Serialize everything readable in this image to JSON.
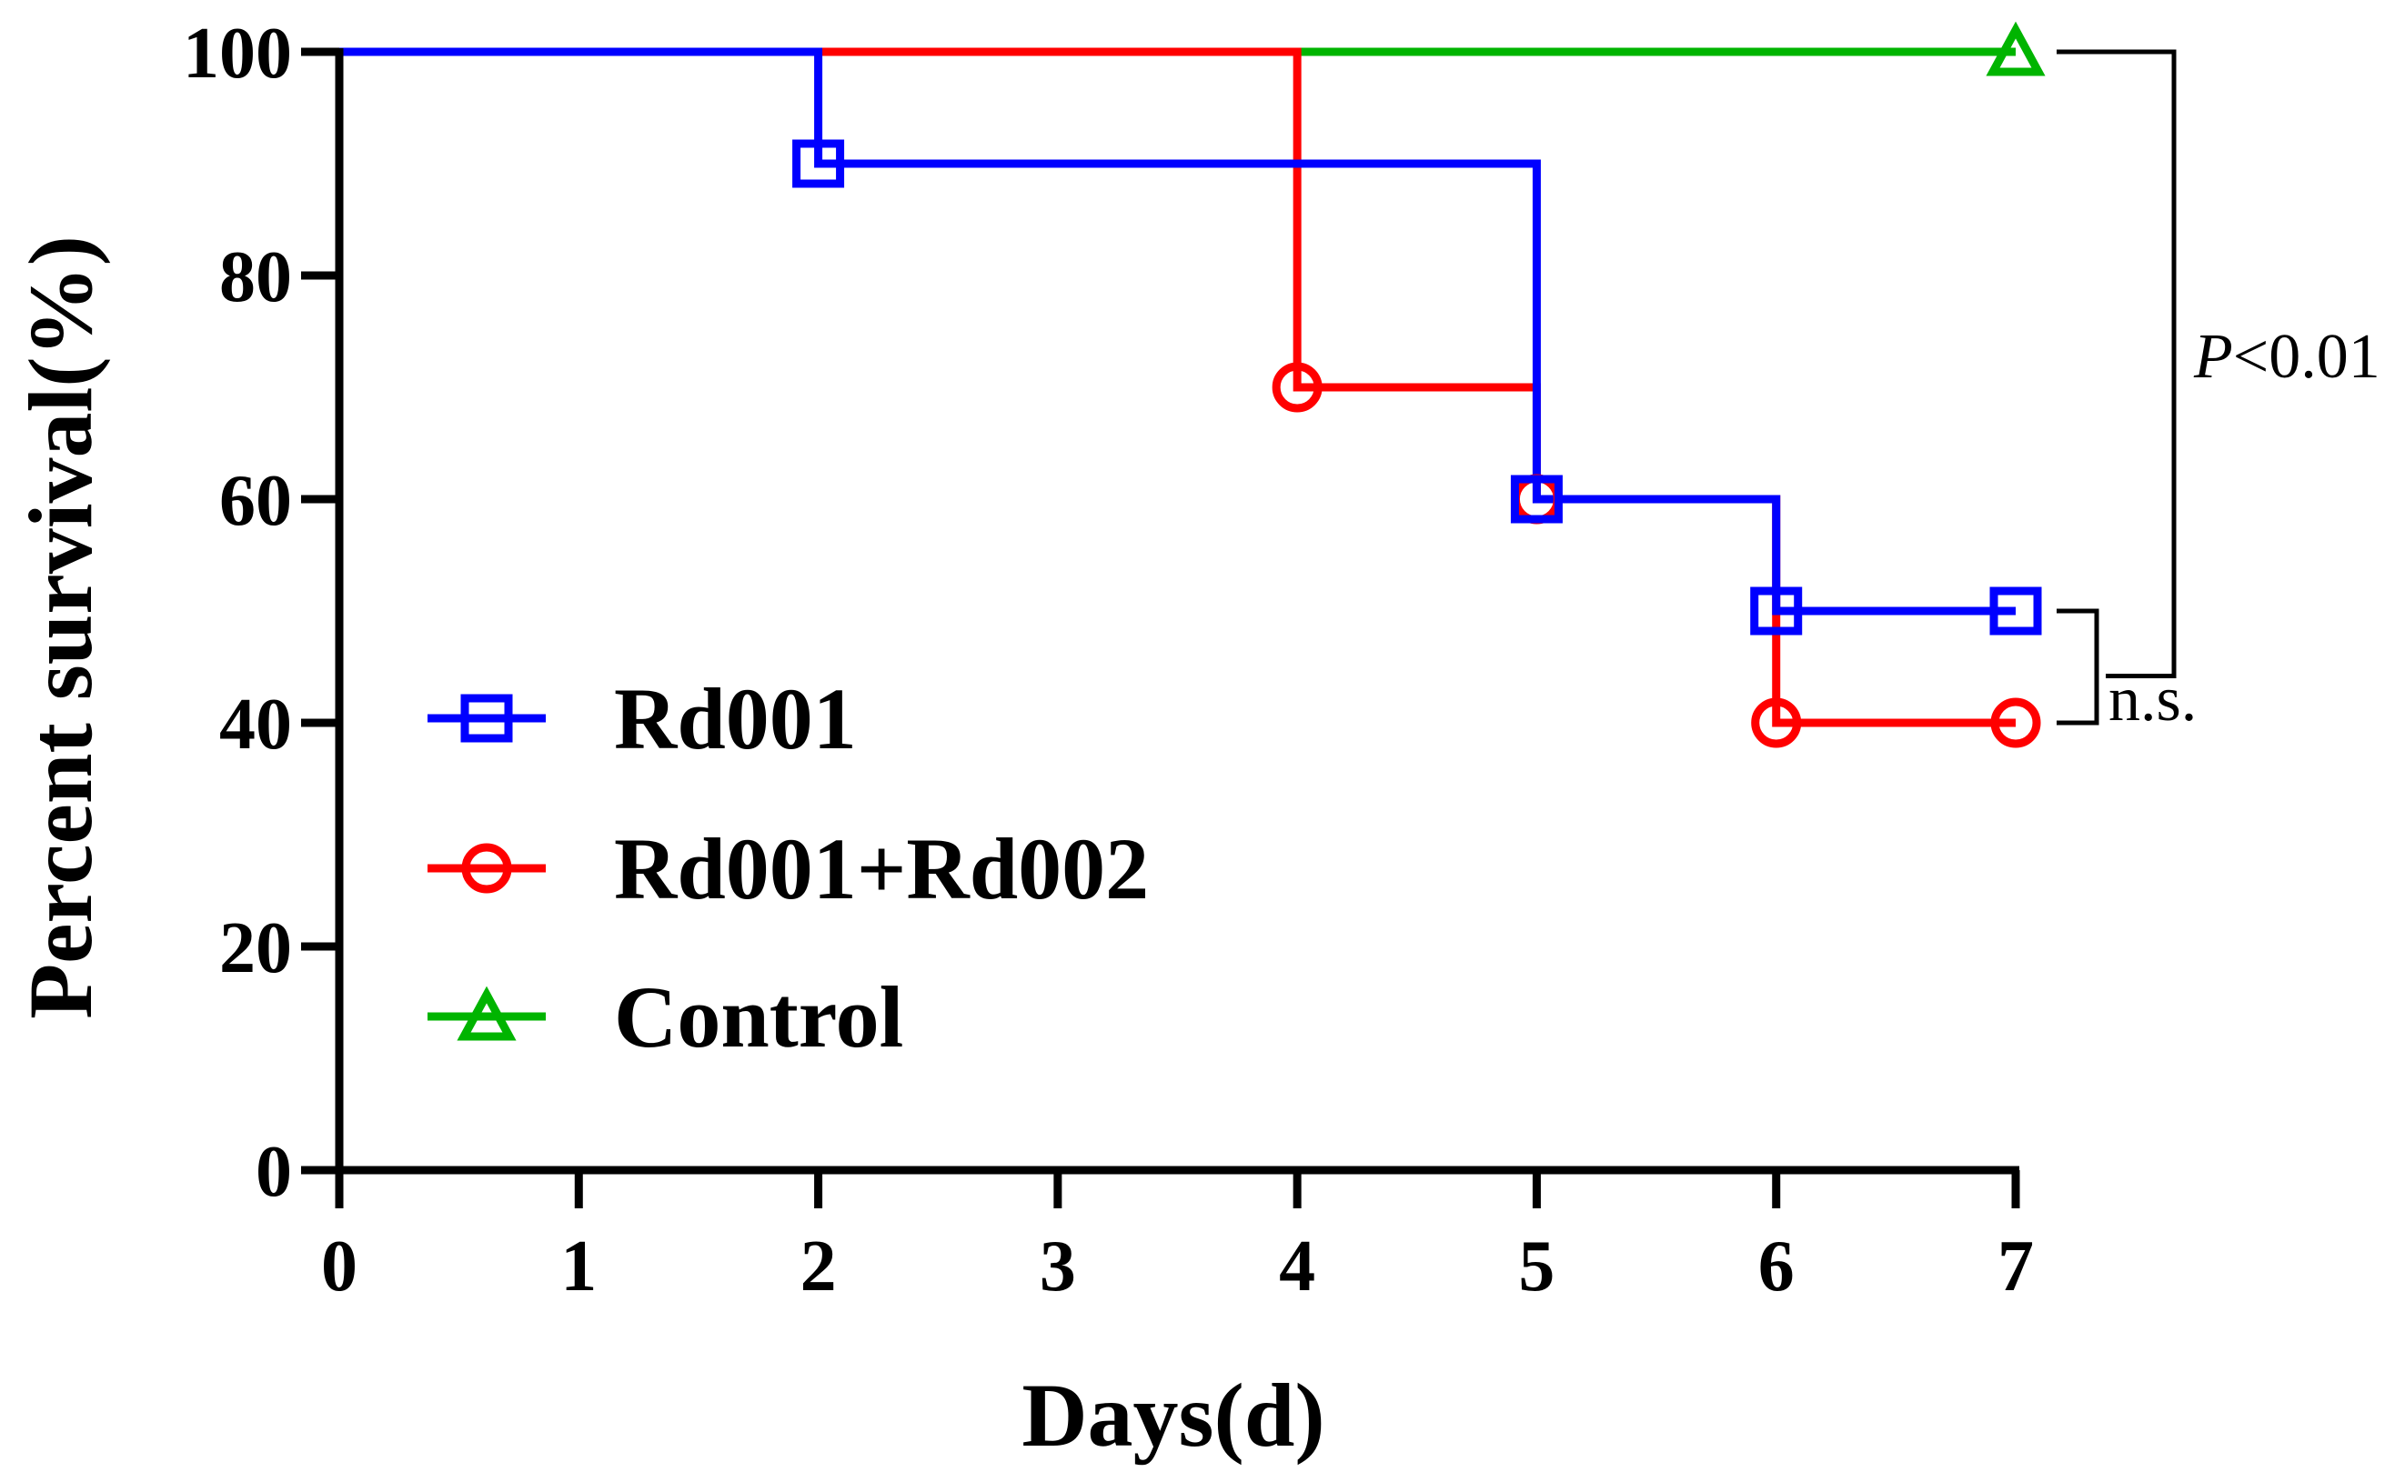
{
  "chart_data": {
    "type": "line",
    "subtype": "kaplan-meier-step",
    "xlabel": "Days(d)",
    "ylabel": "Percent survival(%)",
    "xlim": [
      0,
      7
    ],
    "ylim": [
      0,
      100
    ],
    "x_ticks": [
      0,
      1,
      2,
      3,
      4,
      5,
      6,
      7
    ],
    "y_ticks": [
      0,
      20,
      40,
      60,
      80,
      100
    ],
    "grid": false,
    "legend_position": "bottom-left",
    "series": [
      {
        "name": "Rd001",
        "color": "#0000ff",
        "marker": "square",
        "steps": [
          [
            0,
            100
          ],
          [
            2,
            90
          ],
          [
            5,
            60
          ],
          [
            6,
            50
          ],
          [
            7,
            50
          ]
        ],
        "markers": [
          [
            2,
            90
          ],
          [
            5,
            60
          ],
          [
            6,
            50
          ],
          [
            7,
            50
          ]
        ]
      },
      {
        "name": "Rd001+Rd002",
        "color": "#ff0000",
        "marker": "circle",
        "steps": [
          [
            0,
            100
          ],
          [
            4,
            70
          ],
          [
            5,
            60
          ],
          [
            6,
            40
          ],
          [
            7,
            40
          ]
        ],
        "markers": [
          [
            4,
            70
          ],
          [
            5,
            60
          ],
          [
            6,
            40
          ],
          [
            7,
            40
          ]
        ]
      },
      {
        "name": "Control",
        "color": "#00b400",
        "marker": "triangle",
        "steps": [
          [
            0,
            100
          ],
          [
            7,
            100
          ]
        ],
        "markers": [
          [
            7,
            100
          ]
        ]
      }
    ],
    "annotations": {
      "p_value_label": "P",
      "p_value_rest": "<0.01",
      "ns_label": "n.s."
    }
  }
}
